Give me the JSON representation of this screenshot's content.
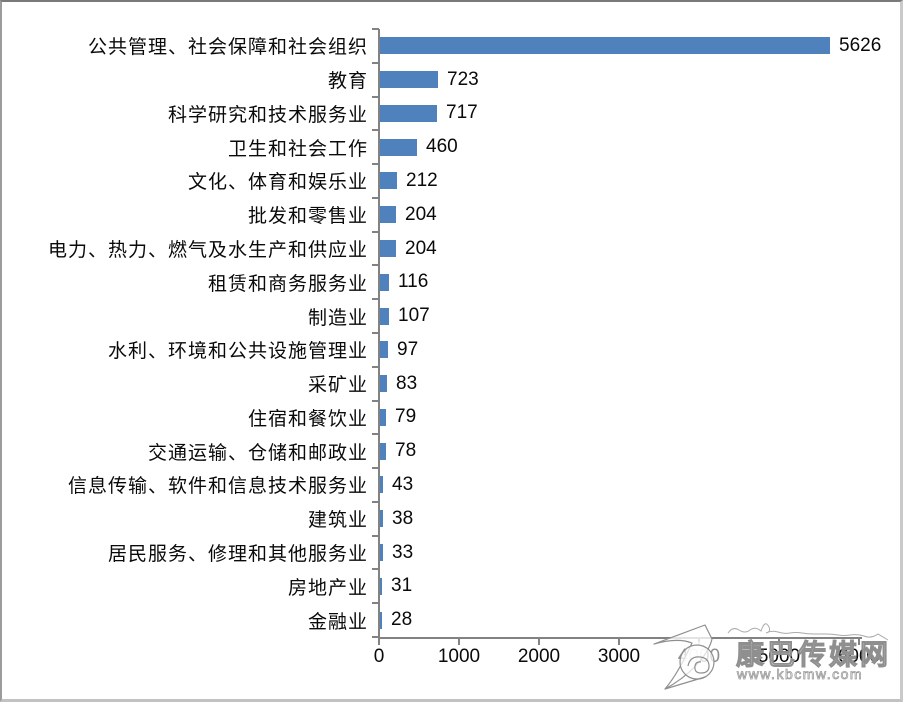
{
  "chart_data": {
    "type": "bar",
    "orientation": "horizontal",
    "title": "",
    "xlabel": "",
    "ylabel": "",
    "categories": [
      "公共管理、社会保障和社会组织",
      "教育",
      "科学研究和技术服务业",
      "卫生和社会工作",
      "文化、体育和娱乐业",
      "批发和零售业",
      "电力、热力、燃气及水生产和供应业",
      "租赁和商务服务业",
      "制造业",
      "水利、环境和公共设施管理业",
      "采矿业",
      "住宿和餐饮业",
      "交通运输、仓储和邮政业",
      "信息传输、软件和信息技术服务业",
      "建筑业",
      "居民服务、修理和其他服务业",
      "房地产业",
      "金融业"
    ],
    "values": [
      5626,
      723,
      717,
      460,
      212,
      204,
      204,
      116,
      107,
      97,
      83,
      79,
      78,
      43,
      38,
      33,
      31,
      28
    ],
    "data_labels": true,
    "xlim": [
      0,
      6000
    ],
    "x_ticks": [
      0,
      1000,
      2000,
      3000,
      4000,
      5000,
      6000
    ],
    "x_tick_labels": [
      "0",
      "1000",
      "2000",
      "3000",
      "4000",
      "5000",
      "6000"
    ],
    "grid": false,
    "legend": false,
    "bar_color": "#4f81bd",
    "axis_color": "#828282"
  },
  "watermark": {
    "site_name": "康巴传媒网",
    "site_url": "www.kbcmw.com"
  }
}
